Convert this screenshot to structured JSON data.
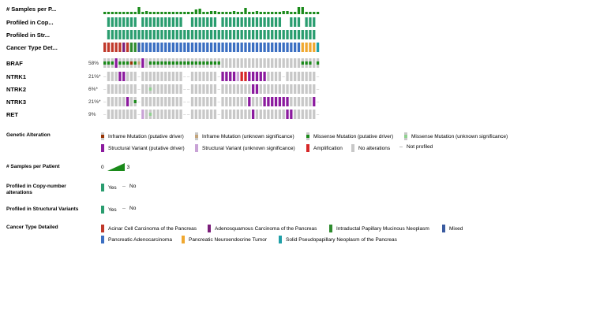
{
  "tracks": {
    "samples_per_patient": "# Samples per P...",
    "profiled_cna": "Profiled in Cop...",
    "profiled_sv": "Profiled in Str...",
    "cancer_type": "Cancer Type Det..."
  },
  "genes": [
    {
      "name": "BRAF",
      "pct": "58%"
    },
    {
      "name": "NTRK1",
      "pct": "21%*"
    },
    {
      "name": "NTRK2",
      "pct": "6%*"
    },
    {
      "name": "NTRK3",
      "pct": "21%*"
    },
    {
      "name": "RET",
      "pct": "9%"
    }
  ],
  "colors": {
    "green_driver": "#1a8a1a",
    "mutation_unknown": "#8fd18f",
    "inframe_driver": "#993404",
    "inframe_unknown": "#c4a57a",
    "sv_driver": "#8b1a9e",
    "sv_unknown": "#c9a3d6",
    "amplification": "#d62728",
    "no_alteration": "#c8c8c8",
    "profiled": "#2a9d6f",
    "acinar": "#c0392b",
    "adenosquamous": "#7b1e7a",
    "ipmn": "#2e8b2e",
    "mixed": "#3a5ba0",
    "pancreatic_adeno": "#3b6fc2",
    "pnet": "#f0a830",
    "spn": "#20a0a8"
  },
  "legend": {
    "genetic_alteration": {
      "title": "Genetic Alteration",
      "items": [
        "Inframe Mutation (putative driver)",
        "Inframe Mutation (unknown significance)",
        "Missense Mutation (putative driver)",
        "Missense Mutation (unknown significance)",
        "Structural Variant (putative driver)",
        "Structural Variant (unknown significance)",
        "Amplification",
        "No alterations",
        "Not profiled"
      ]
    },
    "samples_per_patient": {
      "title": "# Samples per Patient",
      "min": "0",
      "max": "3"
    },
    "profiled_cna": {
      "title": "Profiled in Copy-number alterations",
      "yes": "Yes",
      "no": "No"
    },
    "profiled_sv": {
      "title": "Profiled in Structural Variants",
      "yes": "Yes",
      "no": "No"
    },
    "cancer_type": {
      "title": "Cancer Type Detailed",
      "items": [
        "Acinar Cell Carcinoma of the Pancreas",
        "Adenosquamous Carcinoma of the Pancreas",
        "Intraductal Papillary Mucinous Neoplasm",
        "Mixed",
        "Pancreatic Adenocarcinoma",
        "Pancreatic Neuroendocrine Tumor",
        "Solid Pseudopapillary Neoplasm of the Pancreas"
      ]
    }
  }
}
